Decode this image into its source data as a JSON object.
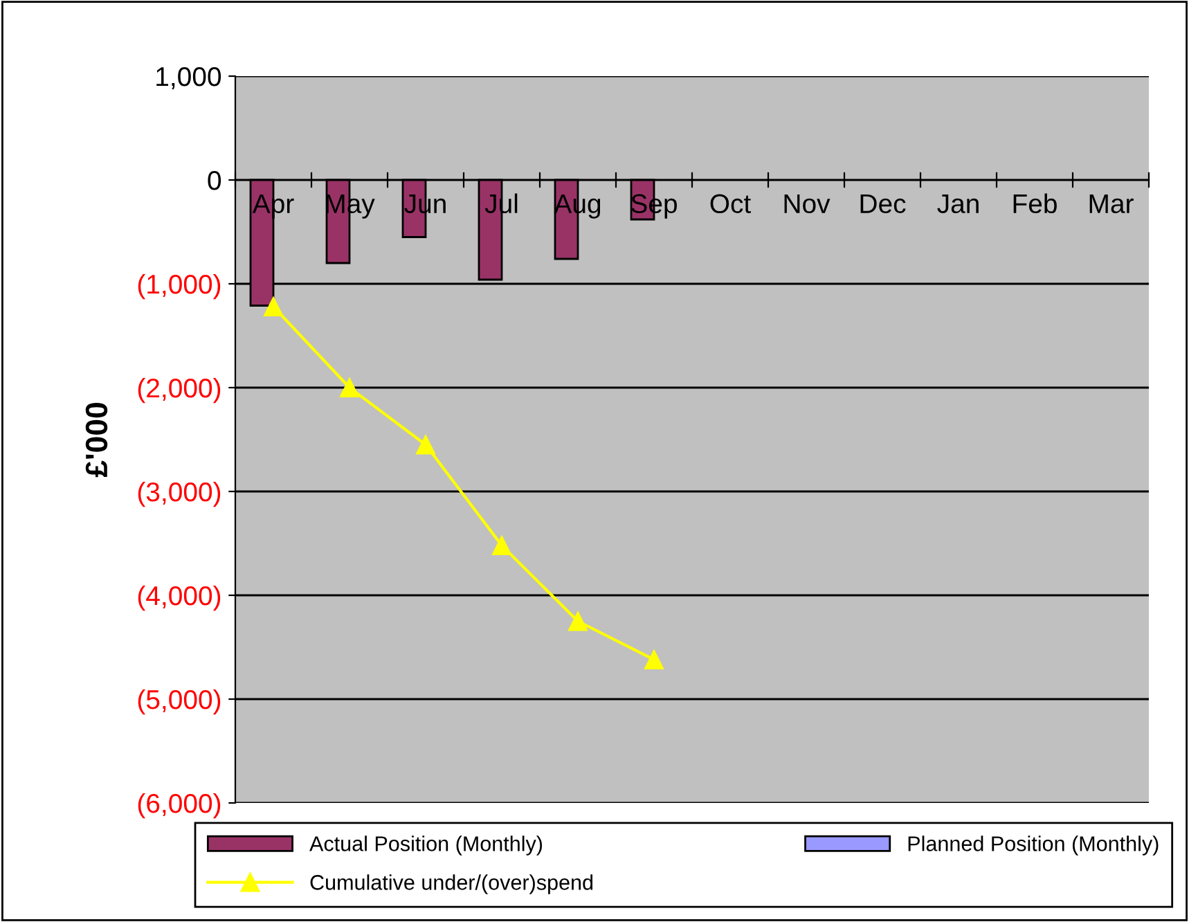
{
  "chart_data": {
    "type": "bar",
    "ylabel": "£'000",
    "categories": [
      "Apr",
      "May",
      "Jun",
      "Jul",
      "Aug",
      "Sep",
      "Oct",
      "Nov",
      "Dec",
      "Jan",
      "Feb",
      "Mar"
    ],
    "series": [
      {
        "name": "Actual Position (Monthly)",
        "color": "#993366",
        "values": [
          -1210,
          -800,
          -550,
          -960,
          -760,
          -380,
          null,
          null,
          null,
          null,
          null,
          null
        ]
      },
      {
        "name": "Planned Position (Monthly)",
        "color": "#9999ff",
        "values": [
          null,
          null,
          null,
          null,
          null,
          null,
          null,
          null,
          null,
          null,
          null,
          null
        ]
      },
      {
        "name": "Cumulative under/(over)spend",
        "type": "line",
        "color": "#ffff00",
        "marker": "triangle",
        "values": [
          -1220,
          -2000,
          -2550,
          -3520,
          -4250,
          -4620,
          null,
          null,
          null,
          null,
          null,
          null
        ]
      }
    ],
    "ylim": [
      -6000,
      1000
    ],
    "yticks": [
      {
        "value": -6000,
        "label": "(6,000)"
      },
      {
        "value": -5000,
        "label": "(5,000)"
      },
      {
        "value": -4000,
        "label": "(4,000)"
      },
      {
        "value": -3000,
        "label": "(3,000)"
      },
      {
        "value": -2000,
        "label": "(2,000)"
      },
      {
        "value": -1000,
        "label": "(1,000)"
      },
      0,
      {
        "value": 1000,
        "label": "1,000"
      }
    ],
    "grid": "y",
    "legend": "bottom"
  }
}
